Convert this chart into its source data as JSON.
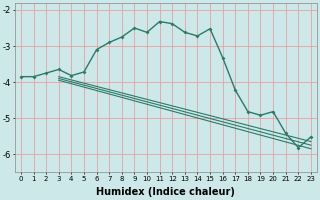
{
  "xlabel": "Humidex (Indice chaleur)",
  "background_color": "#cce8e8",
  "grid_color": "#e8a0a0",
  "line_color": "#2a7a6a",
  "x_values": [
    0,
    1,
    2,
    3,
    4,
    5,
    6,
    7,
    8,
    9,
    10,
    11,
    12,
    13,
    14,
    15,
    16,
    17,
    18,
    19,
    20,
    21,
    22,
    23
  ],
  "line1": [
    -3.85,
    -3.85,
    -3.75,
    -3.65,
    -3.82,
    -3.72,
    -3.1,
    -2.9,
    -2.75,
    -2.5,
    -2.62,
    -2.32,
    -2.38,
    -2.62,
    -2.72,
    -2.52,
    -3.32,
    -4.22,
    -4.82,
    -4.92,
    -4.82,
    -5.42,
    -5.82,
    -5.52
  ],
  "line2_x": [
    3,
    23
  ],
  "line2_y": [
    -3.85,
    -5.65
  ],
  "line3_x": [
    3,
    23
  ],
  "line3_y": [
    -3.9,
    -5.75
  ],
  "line4_x": [
    3,
    23
  ],
  "line4_y": [
    -3.95,
    -5.85
  ],
  "ylim": [
    -6.5,
    -1.8
  ],
  "xlim": [
    -0.5,
    23.5
  ],
  "yticks": [
    -6,
    -5,
    -4,
    -3,
    -2
  ],
  "xticks": [
    0,
    1,
    2,
    3,
    4,
    5,
    6,
    7,
    8,
    9,
    10,
    11,
    12,
    13,
    14,
    15,
    16,
    17,
    18,
    19,
    20,
    21,
    22,
    23
  ]
}
